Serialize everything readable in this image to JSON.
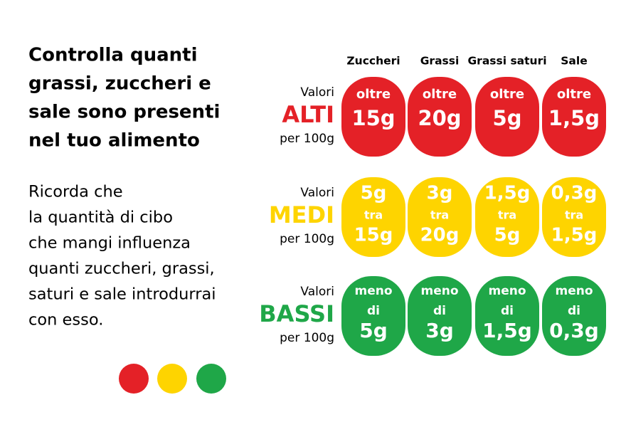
{
  "title_lines": [
    "Controlla quanti",
    "grassi, zuccheri e",
    "sale sono presenti",
    "nel tuo alimento"
  ],
  "note_lines": [
    "Ricorda che",
    "la quantità di cibo",
    "che mangi influenza",
    "quanti zuccheri, grassi,",
    "saturi e sale introdurrai",
    "con esso."
  ],
  "columns": [
    "Zuccheri",
    "Grassi",
    "Grassi saturi",
    "Sale"
  ],
  "rows": [
    {
      "prefix": "Valori",
      "level": "ALTI",
      "suffix": "per 100g",
      "color": "#e42127",
      "cells": [
        [
          "oltre",
          "15g"
        ],
        [
          "oltre",
          "20g"
        ],
        [
          "oltre",
          "5g"
        ],
        [
          "oltre",
          "1,5g"
        ]
      ]
    },
    {
      "prefix": "Valori",
      "level": "MEDI",
      "suffix": "per 100g",
      "color": "#fed400",
      "cells": [
        [
          "5g",
          "tra",
          "15g"
        ],
        [
          "3g",
          "tra",
          "20g"
        ],
        [
          "1,5g",
          "tra",
          "5g"
        ],
        [
          "0,3g",
          "tra",
          "1,5g"
        ]
      ]
    },
    {
      "prefix": "Valori",
      "level": "BASSI",
      "suffix": "per 100g",
      "color": "#1fa748",
      "cells": [
        [
          "meno",
          "di",
          "5g"
        ],
        [
          "meno",
          "di",
          "3g"
        ],
        [
          "meno",
          "di",
          "1,5g"
        ],
        [
          "meno",
          "di",
          "0,3g"
        ]
      ]
    }
  ]
}
